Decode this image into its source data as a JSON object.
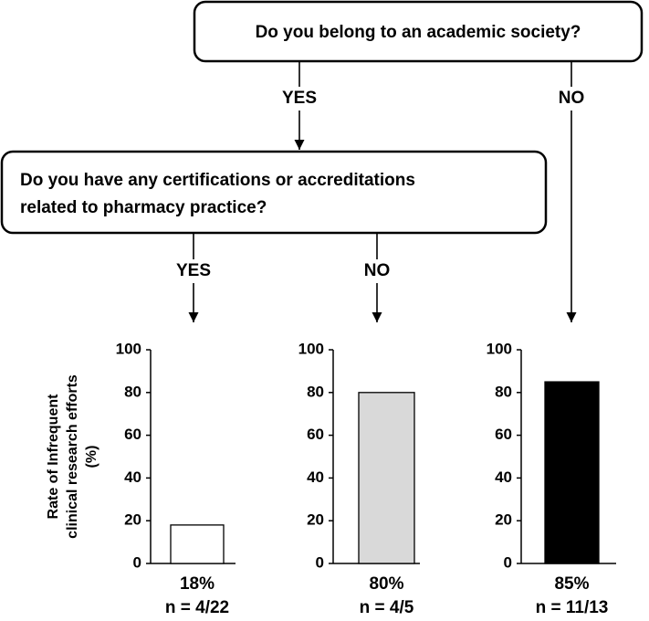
{
  "nodes": [
    {
      "lines": [
        "Do you belong to an academic society?"
      ]
    },
    {
      "lines": [
        "Do you have any certifications or accreditations",
        "related to pharmacy practice?"
      ]
    }
  ],
  "edges": [
    {
      "label": "YES"
    },
    {
      "label": "NO"
    },
    {
      "label": "YES"
    },
    {
      "label": "NO"
    }
  ],
  "chart_data": [
    {
      "type": "bar",
      "ylabel": [
        "Rate of Infrequent",
        "clinical research efforts",
        "(%)"
      ],
      "values": [
        18
      ],
      "value_labels": [
        "18%"
      ],
      "note": "n = 4/22",
      "color": "#ffffff",
      "ylim": [
        0,
        100
      ],
      "yticks": [
        0,
        20,
        40,
        60,
        80,
        100
      ]
    },
    {
      "type": "bar",
      "values": [
        80
      ],
      "value_labels": [
        "80%"
      ],
      "note": "n = 4/5",
      "color": "#d9d9d9",
      "ylim": [
        0,
        100
      ],
      "yticks": [
        0,
        20,
        40,
        60,
        80,
        100
      ]
    },
    {
      "type": "bar",
      "values": [
        85
      ],
      "value_labels": [
        "85%"
      ],
      "note": "n = 11/13",
      "color": "#000000",
      "ylim": [
        0,
        100
      ],
      "yticks": [
        0,
        20,
        40,
        60,
        80,
        100
      ]
    }
  ]
}
